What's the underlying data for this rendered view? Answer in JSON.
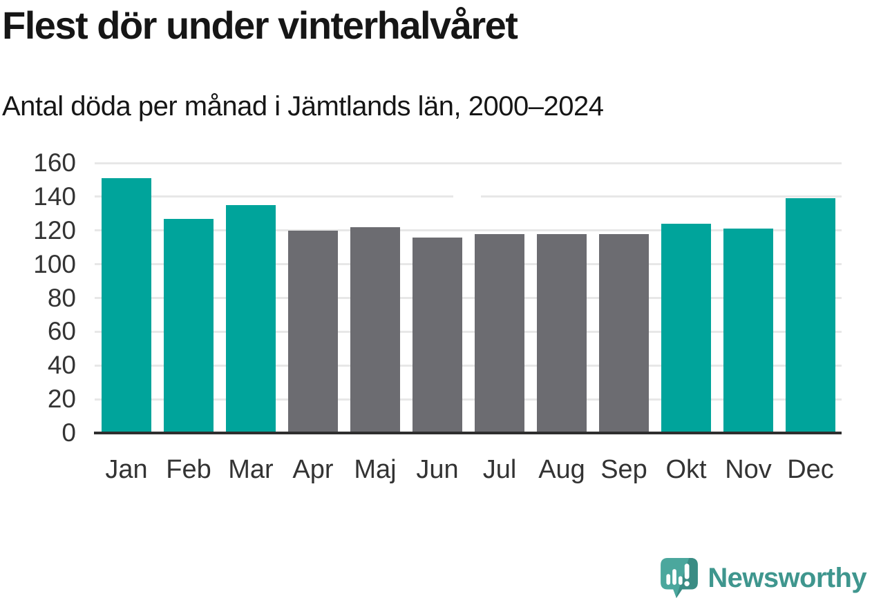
{
  "header": {
    "title": "Flest dör under vinterhalvåret",
    "subtitle": "Antal döda per månad i Jämtlands län, 2000–2024"
  },
  "chart_data": {
    "type": "bar",
    "title": "Flest dör under vinterhalvåret",
    "subtitle": "Antal döda per månad i Jämtlands län, 2000–2024",
    "categories": [
      "Jan",
      "Feb",
      "Mar",
      "Apr",
      "Maj",
      "Jun",
      "Jul",
      "Aug",
      "Sep",
      "Okt",
      "Nov",
      "Dec"
    ],
    "values": [
      151,
      127,
      135,
      120,
      122,
      116,
      118,
      118,
      118,
      124,
      121,
      139
    ],
    "bar_groups": [
      "winter",
      "winter",
      "winter",
      "summer",
      "summer",
      "summer",
      "summer",
      "summer",
      "summer",
      "winter",
      "winter",
      "winter"
    ],
    "xlabel": "",
    "ylabel": "",
    "ylim": [
      0,
      160
    ],
    "yticks": [
      0,
      20,
      40,
      60,
      80,
      100,
      120,
      140,
      160
    ],
    "grid": "horizontal-only",
    "legend": "none"
  },
  "colors": {
    "winter_bar": "#00a49b",
    "summer_bar": "#6c6c71",
    "gridline": "#e7e7e7",
    "axis": "#2e2e2e",
    "text_dark": "#161616",
    "tick_text": "#333333",
    "logo_text": "#3f968e",
    "logo_bubble": "#4ba79d",
    "logo_bubble_shade": "#3a8c84"
  },
  "footer": {
    "brand_name": "Newsworthy"
  }
}
